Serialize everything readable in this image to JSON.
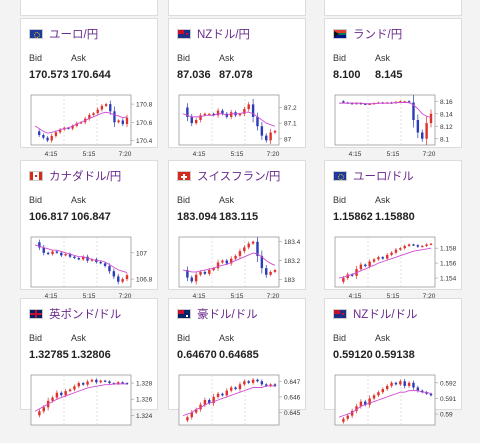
{
  "colors": {
    "up": "#e0302a",
    "down": "#2a3ab8",
    "ma": "#d24bd2",
    "frame": "#999999",
    "grid": "#cfcfcf",
    "accent": "#6a2a8c"
  },
  "labels": {
    "bid": "Bid",
    "ask": "Ask"
  },
  "cards": [
    {
      "id": "eur-jpy",
      "pair": "ユーロ/円",
      "flag": "eu",
      "bid": "170.573",
      "ask": "170.644",
      "yticks": [
        "170.8",
        "170.6",
        "170.4"
      ],
      "ylim": [
        170.35,
        170.9
      ],
      "xticks": [
        "4:15",
        "5:15",
        "7:20"
      ],
      "series": [
        170.5,
        170.46,
        170.43,
        170.4,
        170.45,
        170.49,
        170.52,
        170.54,
        170.53,
        170.56,
        170.59,
        170.6,
        170.64,
        170.68,
        170.7,
        170.74,
        170.78,
        170.8,
        170.72,
        170.6,
        170.62,
        170.58,
        170.65
      ],
      "ma": [
        170.56,
        170.53,
        170.5,
        170.48,
        170.49,
        170.5,
        170.52,
        170.53,
        170.54,
        170.56,
        170.58,
        170.6,
        170.62,
        170.64,
        170.66,
        170.68,
        170.7,
        170.71,
        170.7,
        170.68,
        170.67,
        170.65,
        170.66
      ]
    },
    {
      "id": "nzd-jpy",
      "pair": "NZドル/円",
      "flag": "nz",
      "bid": "87.036",
      "ask": "87.078",
      "yticks": [
        "87.2",
        "87.1",
        "87"
      ],
      "ylim": [
        86.96,
        87.28
      ],
      "xticks": [
        "4:15",
        "5:15",
        "7:20"
      ],
      "series": [
        87.2,
        87.14,
        87.1,
        87.12,
        87.15,
        87.16,
        87.16,
        87.15,
        87.18,
        87.16,
        87.14,
        87.17,
        87.15,
        87.16,
        87.19,
        87.22,
        87.14,
        87.08,
        87.02,
        86.99,
        87.04,
        87.05
      ],
      "ma": [
        87.16,
        87.15,
        87.14,
        87.14,
        87.14,
        87.15,
        87.15,
        87.15,
        87.16,
        87.16,
        87.15,
        87.16,
        87.16,
        87.16,
        87.17,
        87.17,
        87.16,
        87.14,
        87.12,
        87.1,
        87.09,
        87.08
      ]
    },
    {
      "id": "zar-jpy",
      "pair": "ランド/円",
      "flag": "za",
      "bid": "8.100",
      "ask": "8.145",
      "yticks": [
        "8.16",
        "8.14",
        "8.12",
        "8.1"
      ],
      "ylim": [
        8.09,
        8.17
      ],
      "xticks": [
        "4:15",
        "5:15",
        "7:20"
      ],
      "series": [
        8.16,
        8.158,
        8.157,
        8.156,
        8.157,
        8.156,
        8.155,
        8.156,
        8.157,
        8.158,
        8.157,
        8.158,
        8.157,
        8.159,
        8.16,
        8.16,
        8.158,
        8.13,
        8.11,
        8.1,
        8.125,
        8.14
      ],
      "ma": [
        8.157,
        8.157,
        8.157,
        8.157,
        8.157,
        8.157,
        8.156,
        8.156,
        8.156,
        8.157,
        8.157,
        8.157,
        8.157,
        8.158,
        8.158,
        8.158,
        8.158,
        8.154,
        8.148,
        8.14,
        8.136,
        8.134
      ]
    },
    {
      "id": "cad-jpy",
      "pair": "カナダドル/円",
      "flag": "ca",
      "bid": "106.817",
      "ask": "106.847",
      "yticks": [
        "107",
        "106.8"
      ],
      "ylim": [
        106.74,
        107.12
      ],
      "xticks": [
        "4:15",
        "5:15",
        "7:20"
      ],
      "series": [
        107.08,
        107.04,
        107.0,
        106.99,
        107.01,
        107.0,
        106.98,
        106.99,
        106.97,
        106.96,
        106.95,
        106.97,
        106.94,
        106.95,
        106.93,
        106.92,
        106.9,
        106.86,
        106.82,
        106.78,
        106.8,
        106.83
      ],
      "ma": [
        107.06,
        107.05,
        107.04,
        107.03,
        107.02,
        107.02,
        107.01,
        107.0,
        106.99,
        106.98,
        106.97,
        106.97,
        106.96,
        106.95,
        106.94,
        106.94,
        106.93,
        106.91,
        106.89,
        106.87,
        106.86,
        106.85
      ]
    },
    {
      "id": "chf-jpy",
      "pair": "スイスフラン/円",
      "flag": "ch",
      "bid": "183.094",
      "ask": "183.115",
      "yticks": [
        "183.4",
        "183.2",
        "183"
      ],
      "ylim": [
        182.92,
        183.45
      ],
      "xticks": [
        "4:15",
        "5:15",
        "7:20"
      ],
      "series": [
        183.1,
        183.02,
        182.98,
        183.05,
        183.08,
        183.06,
        183.1,
        183.12,
        183.18,
        183.2,
        183.17,
        183.22,
        183.25,
        183.3,
        183.34,
        183.38,
        183.4,
        183.25,
        183.12,
        183.05,
        183.08,
        183.1
      ],
      "ma": [
        183.1,
        183.09,
        183.08,
        183.08,
        183.09,
        183.1,
        183.11,
        183.12,
        183.14,
        183.15,
        183.16,
        183.18,
        183.2,
        183.22,
        183.24,
        183.26,
        183.28,
        183.27,
        183.24,
        183.2,
        183.17,
        183.15
      ]
    },
    {
      "id": "eur-usd",
      "pair": "ユーロ/ドル",
      "flag": "eu",
      "bid": "1.15862",
      "ask": "1.15880",
      "yticks": [
        "1.158",
        "1.156",
        "1.154"
      ],
      "ylim": [
        1.1528,
        1.1595
      ],
      "xticks": [
        "4:15",
        "5:15",
        "7:20"
      ],
      "series": [
        1.1535,
        1.154,
        1.1545,
        1.1543,
        1.1552,
        1.1558,
        1.1556,
        1.1562,
        1.1565,
        1.1568,
        1.1566,
        1.1571,
        1.1574,
        1.1578,
        1.158,
        1.1583,
        1.1585,
        1.1584,
        1.1582,
        1.1583,
        1.1585,
        1.1586
      ],
      "ma": [
        1.154,
        1.1541,
        1.1543,
        1.1545,
        1.1547,
        1.155,
        1.1552,
        1.1555,
        1.1557,
        1.156,
        1.1562,
        1.1564,
        1.1566,
        1.1568,
        1.157,
        1.1572,
        1.1574,
        1.1576,
        1.1577,
        1.1578,
        1.1579,
        1.158
      ]
    },
    {
      "id": "gbp-usd",
      "pair": "英ポンド/ドル",
      "flag": "gb",
      "bid": "1.32785",
      "ask": "1.32806",
      "yticks": [
        "1.328",
        "1.326",
        "1.324"
      ],
      "ylim": [
        1.3228,
        1.329
      ],
      "xticks": [],
      "series": [
        1.324,
        1.3245,
        1.325,
        1.3258,
        1.3262,
        1.3268,
        1.3265,
        1.327,
        1.3272,
        1.3276,
        1.328,
        1.3278,
        1.3282,
        1.3284,
        1.3281,
        1.3283,
        1.3282,
        1.328,
        1.3279,
        1.3281,
        1.328,
        1.3279
      ],
      "ma": [
        1.3245,
        1.3248,
        1.3251,
        1.3254,
        1.3257,
        1.326,
        1.3262,
        1.3264,
        1.3266,
        1.3268,
        1.327,
        1.3272,
        1.3274,
        1.3275,
        1.3276,
        1.3277,
        1.3278,
        1.3278,
        1.3279,
        1.3279,
        1.3279,
        1.3279
      ]
    },
    {
      "id": "aud-usd",
      "pair": "豪ドル/ドル",
      "flag": "au",
      "bid": "0.64670",
      "ask": "0.64685",
      "yticks": [
        "0.647",
        "0.646",
        "0.645"
      ],
      "ylim": [
        0.6442,
        0.6474
      ],
      "xticks": [],
      "series": [
        0.6445,
        0.6447,
        0.645,
        0.6452,
        0.6455,
        0.6458,
        0.6456,
        0.646,
        0.6462,
        0.6461,
        0.6464,
        0.6466,
        0.6465,
        0.6468,
        0.647,
        0.6469,
        0.6471,
        0.647,
        0.6468,
        0.6467,
        0.6468,
        0.6467
      ],
      "ma": [
        0.6448,
        0.6449,
        0.645,
        0.6452,
        0.6453,
        0.6455,
        0.6456,
        0.6457,
        0.6458,
        0.6459,
        0.646,
        0.6461,
        0.6462,
        0.6463,
        0.6464,
        0.6465,
        0.6466,
        0.6466,
        0.6466,
        0.6467,
        0.6467,
        0.6467
      ]
    },
    {
      "id": "nzd-usd",
      "pair": "NZドル/ドル",
      "flag": "nz",
      "bid": "0.59120",
      "ask": "0.59138",
      "yticks": [
        "0.592",
        "0.591",
        "0.59"
      ],
      "ylim": [
        0.5893,
        0.5925
      ],
      "xticks": [],
      "series": [
        0.5895,
        0.5897,
        0.5899,
        0.5902,
        0.5905,
        0.5908,
        0.5906,
        0.591,
        0.5912,
        0.5914,
        0.5916,
        0.5918,
        0.592,
        0.5919,
        0.5921,
        0.5918,
        0.592,
        0.5917,
        0.5915,
        0.5914,
        0.5913,
        0.5912
      ],
      "ma": [
        0.5898,
        0.5899,
        0.59,
        0.5901,
        0.5903,
        0.5905,
        0.5906,
        0.5907,
        0.5908,
        0.5909,
        0.591,
        0.5911,
        0.5912,
        0.5913,
        0.5914,
        0.5914,
        0.5915,
        0.5915,
        0.5915,
        0.5914,
        0.5914,
        0.5913
      ]
    }
  ]
}
